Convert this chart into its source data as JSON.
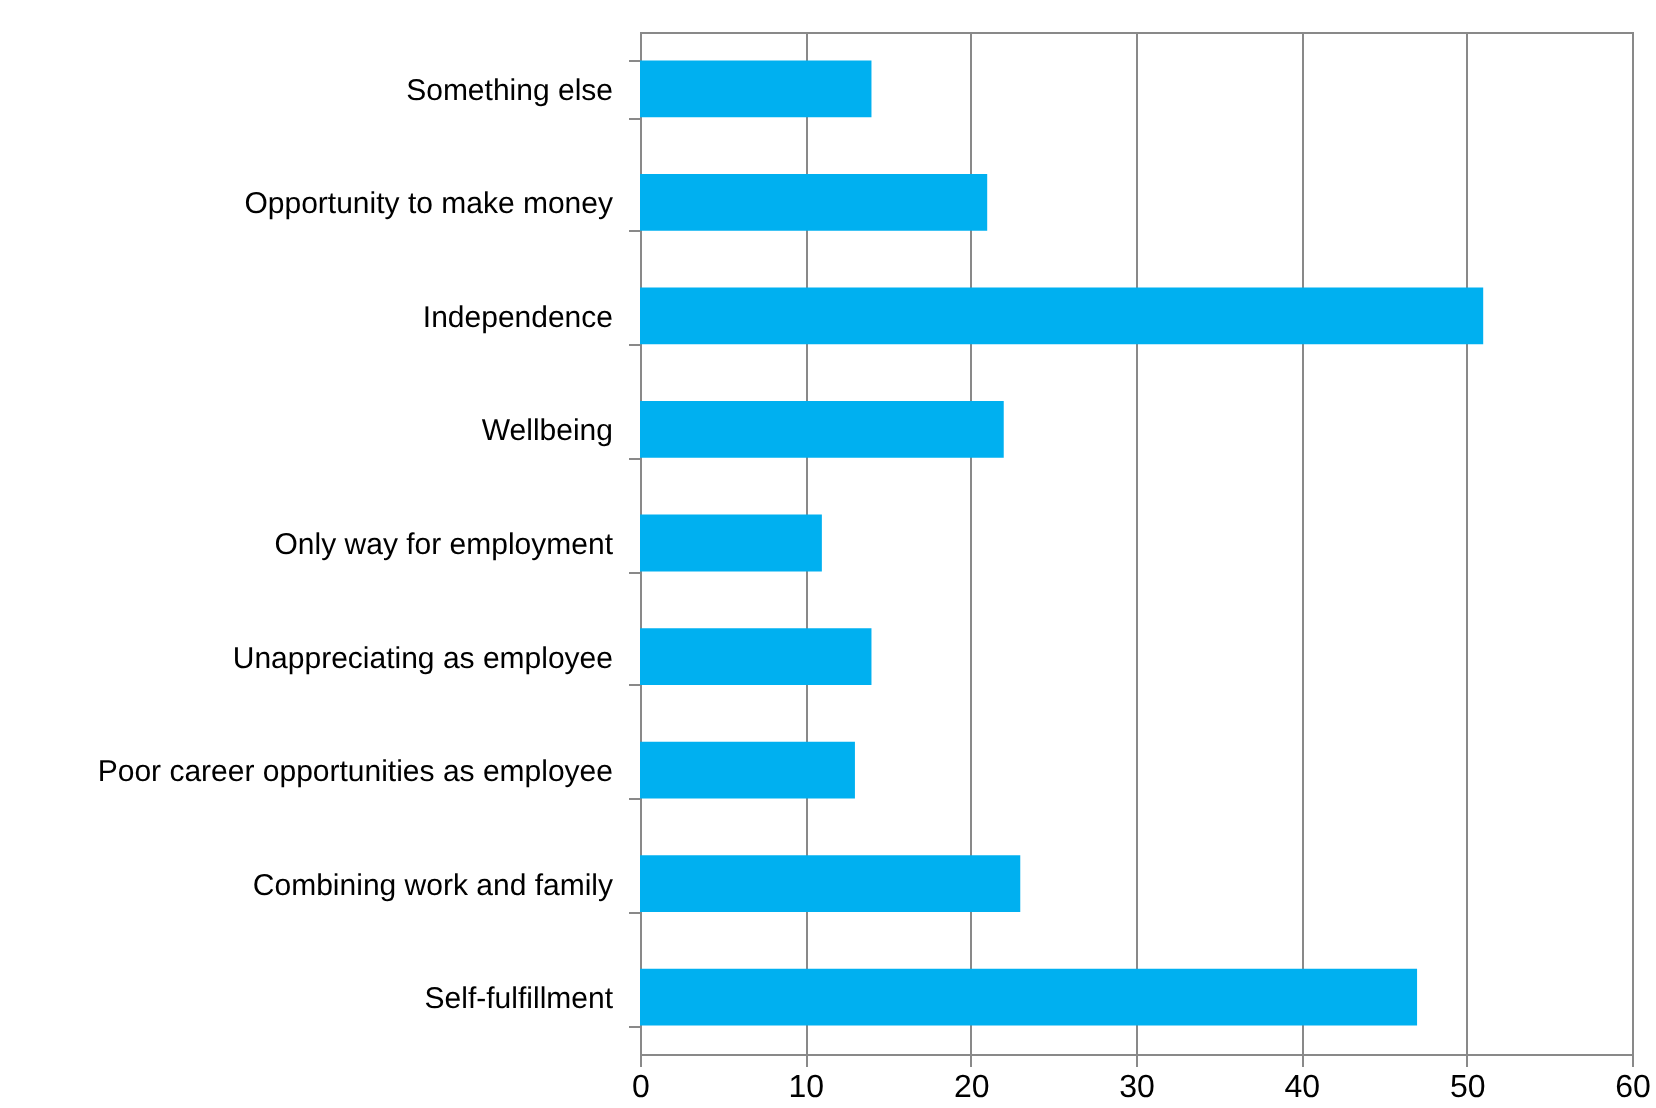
{
  "chart_data": {
    "type": "bar",
    "orientation": "horizontal",
    "categories": [
      "Something else",
      "Opportunity to make money",
      "Independence",
      "Wellbeing",
      "Only way for employment",
      "Unappreciating as employee",
      "Poor career opportunities as employee",
      "Combining work and family",
      "Self-fulfillment"
    ],
    "values": [
      14,
      21,
      51,
      22,
      11,
      14,
      13,
      23,
      47
    ],
    "color": "#00b0f0",
    "xlim": [
      0,
      60
    ],
    "xticks": [
      0,
      10,
      20,
      30,
      40,
      50,
      60
    ],
    "grid": "x"
  }
}
